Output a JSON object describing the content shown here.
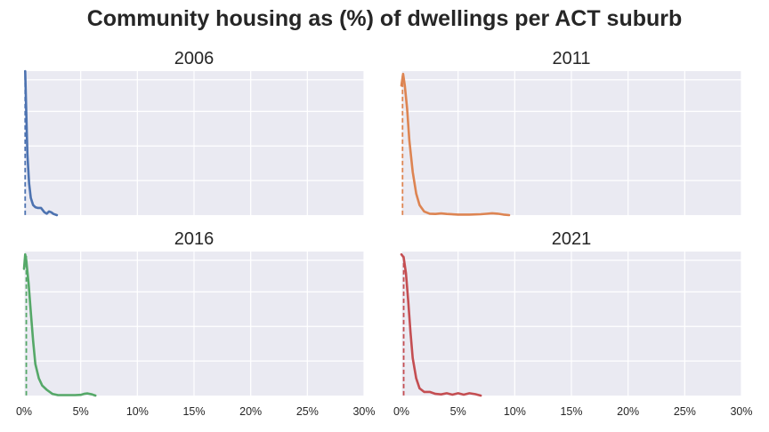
{
  "figure": {
    "title": "Community housing as (%) of dwellings per ACT suburb"
  },
  "chart_data": [
    {
      "type": "line",
      "title": "2006",
      "color": "#4c72b0",
      "xlim": [
        0,
        30
      ],
      "ylim": [
        0,
        1
      ],
      "xticks": [
        0,
        5,
        10,
        15,
        20,
        25,
        30
      ],
      "xtick_labels": [
        "0%",
        "5%",
        "10%",
        "15%",
        "20%",
        "25%",
        "30%"
      ],
      "show_xtick_labels": false,
      "grid": true,
      "median": 0.1,
      "series": [
        {
          "x": [
            0.1,
            0.2,
            0.3,
            0.45,
            0.6,
            0.8,
            1.0,
            1.2,
            1.5,
            1.8,
            2.0,
            2.2,
            2.4,
            2.6,
            2.9
          ],
          "y": [
            1.0,
            0.72,
            0.42,
            0.22,
            0.12,
            0.07,
            0.055,
            0.05,
            0.05,
            0.02,
            0.01,
            0.025,
            0.02,
            0.008,
            0.0
          ]
        }
      ]
    },
    {
      "type": "line",
      "title": "2011",
      "color": "#dd8452",
      "xlim": [
        0,
        30
      ],
      "ylim": [
        0,
        1
      ],
      "xticks": [
        0,
        5,
        10,
        15,
        20,
        25,
        30
      ],
      "xtick_labels": [
        "0%",
        "5%",
        "10%",
        "15%",
        "20%",
        "25%",
        "30%"
      ],
      "show_xtick_labels": false,
      "grid": true,
      "median": 0.1,
      "series": [
        {
          "x": [
            0.0,
            0.15,
            0.3,
            0.5,
            0.7,
            1.0,
            1.3,
            1.6,
            2.0,
            2.5,
            3.0,
            3.5,
            4.0,
            5.0,
            6.0,
            7.0,
            7.5,
            8.0,
            8.5,
            9.0,
            9.5
          ],
          "y": [
            0.9,
            0.98,
            0.9,
            0.74,
            0.52,
            0.3,
            0.15,
            0.07,
            0.025,
            0.01,
            0.008,
            0.012,
            0.008,
            0.004,
            0.004,
            0.006,
            0.009,
            0.013,
            0.01,
            0.004,
            0.0
          ]
        }
      ]
    },
    {
      "type": "line",
      "title": "2016",
      "color": "#55a868",
      "xlim": [
        0,
        30
      ],
      "ylim": [
        0,
        1
      ],
      "xticks": [
        0,
        5,
        10,
        15,
        20,
        25,
        30
      ],
      "xtick_labels": [
        "0%",
        "5%",
        "10%",
        "15%",
        "20%",
        "25%",
        "30%"
      ],
      "show_xtick_labels": true,
      "grid": true,
      "median": 0.2,
      "series": [
        {
          "x": [
            0.0,
            0.1,
            0.2,
            0.4,
            0.6,
            0.8,
            1.0,
            1.3,
            1.6,
            2.0,
            2.5,
            3.0,
            3.5,
            4.0,
            4.5,
            5.0,
            5.3,
            5.6,
            6.0,
            6.3
          ],
          "y": [
            0.88,
            0.98,
            0.94,
            0.78,
            0.58,
            0.38,
            0.22,
            0.12,
            0.07,
            0.04,
            0.012,
            0.003,
            0.003,
            0.003,
            0.003,
            0.005,
            0.012,
            0.015,
            0.008,
            0.0
          ]
        }
      ]
    },
    {
      "type": "line",
      "title": "2021",
      "color": "#c44e52",
      "xlim": [
        0,
        30
      ],
      "ylim": [
        0,
        1
      ],
      "xticks": [
        0,
        5,
        10,
        15,
        20,
        25,
        30
      ],
      "xtick_labels": [
        "0%",
        "5%",
        "10%",
        "15%",
        "20%",
        "25%",
        "30%"
      ],
      "show_xtick_labels": true,
      "grid": true,
      "median": 0.2,
      "series": [
        {
          "x": [
            0.0,
            0.2,
            0.4,
            0.6,
            0.8,
            1.0,
            1.3,
            1.6,
            2.0,
            2.5,
            3.0,
            3.5,
            4.0,
            4.5,
            5.0,
            5.5,
            6.0,
            6.5,
            7.0
          ],
          "y": [
            0.98,
            0.96,
            0.85,
            0.66,
            0.44,
            0.26,
            0.12,
            0.05,
            0.025,
            0.025,
            0.012,
            0.008,
            0.016,
            0.006,
            0.016,
            0.006,
            0.016,
            0.01,
            0.0
          ]
        }
      ]
    }
  ]
}
